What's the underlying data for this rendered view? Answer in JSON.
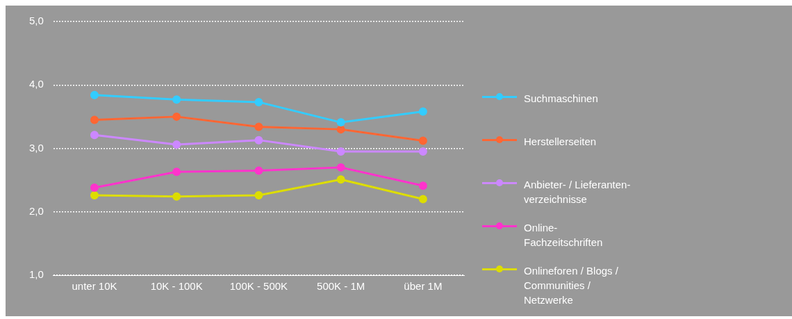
{
  "chart_data": {
    "type": "line",
    "categories": [
      "unter 10K",
      "10K - 100K",
      "100K - 500K",
      "500K - 1M",
      "über 1M"
    ],
    "series": [
      {
        "name": "Suchmaschinen",
        "color": "#33ccff",
        "values": [
          3.84,
          3.77,
          3.73,
          3.41,
          3.58
        ]
      },
      {
        "name": "Herstellerseiten",
        "color": "#ff6633",
        "values": [
          3.45,
          3.5,
          3.34,
          3.3,
          3.12
        ]
      },
      {
        "name": "Anbieter- / Lieferanten-verzeichnisse",
        "color": "#cc88ff",
        "values": [
          3.21,
          3.06,
          3.13,
          2.95,
          2.95
        ]
      },
      {
        "name": "Online-Fachzeitschriften",
        "color": "#ff33cc",
        "values": [
          2.38,
          2.63,
          2.65,
          2.7,
          2.41
        ]
      },
      {
        "name": "Onlineforen / Blogs / Communities / Netzwerke",
        "color": "#dddd00",
        "values": [
          2.26,
          2.24,
          2.26,
          2.51,
          2.2
        ]
      }
    ],
    "ylim": [
      1,
      5
    ],
    "yticks": [
      {
        "value": 1,
        "label": "1,0"
      },
      {
        "value": 2,
        "label": "2,0"
      },
      {
        "value": 3,
        "label": "3,0"
      },
      {
        "value": 4,
        "label": "4,0"
      },
      {
        "value": 5,
        "label": "5,0"
      }
    ],
    "grid": "y",
    "legend": "right",
    "marker": "circle",
    "line_style": "solid"
  }
}
